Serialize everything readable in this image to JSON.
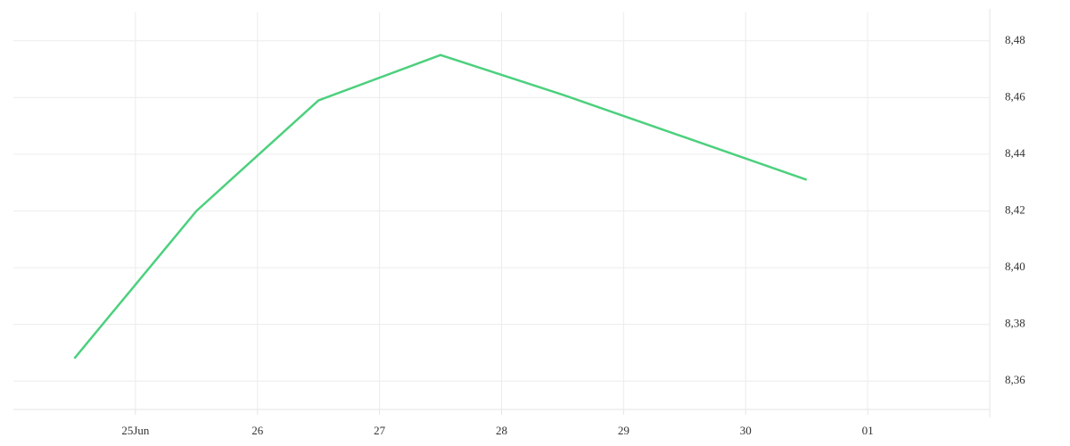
{
  "chart_data": {
    "type": "line",
    "x": [
      24.5,
      25.5,
      26.5,
      27.5,
      28.5,
      29.5,
      30.5
    ],
    "series": [
      {
        "color": "#4cd07d",
        "values": [
          8.368,
          8.42,
          8.459,
          8.475,
          8.461,
          8.446,
          8.431
        ]
      }
    ],
    "xlim": [
      24,
      32
    ],
    "xticks": [
      {
        "value": 25,
        "label": "25Jun"
      },
      26,
      27,
      28,
      29,
      30,
      {
        "value": 31,
        "label": "01"
      }
    ],
    "ylim": [
      8.35,
      8.49
    ],
    "yticks": [
      {
        "value": 8.36,
        "label": "8,36"
      },
      {
        "value": 8.38,
        "label": "8,38"
      },
      {
        "value": 8.4,
        "label": "8,40"
      },
      {
        "value": 8.42,
        "label": "8,42"
      },
      {
        "value": 8.44,
        "label": "8,44"
      },
      {
        "value": 8.46,
        "label": "8,46"
      },
      {
        "value": 8.48,
        "label": "8,48"
      }
    ],
    "grid": true
  }
}
